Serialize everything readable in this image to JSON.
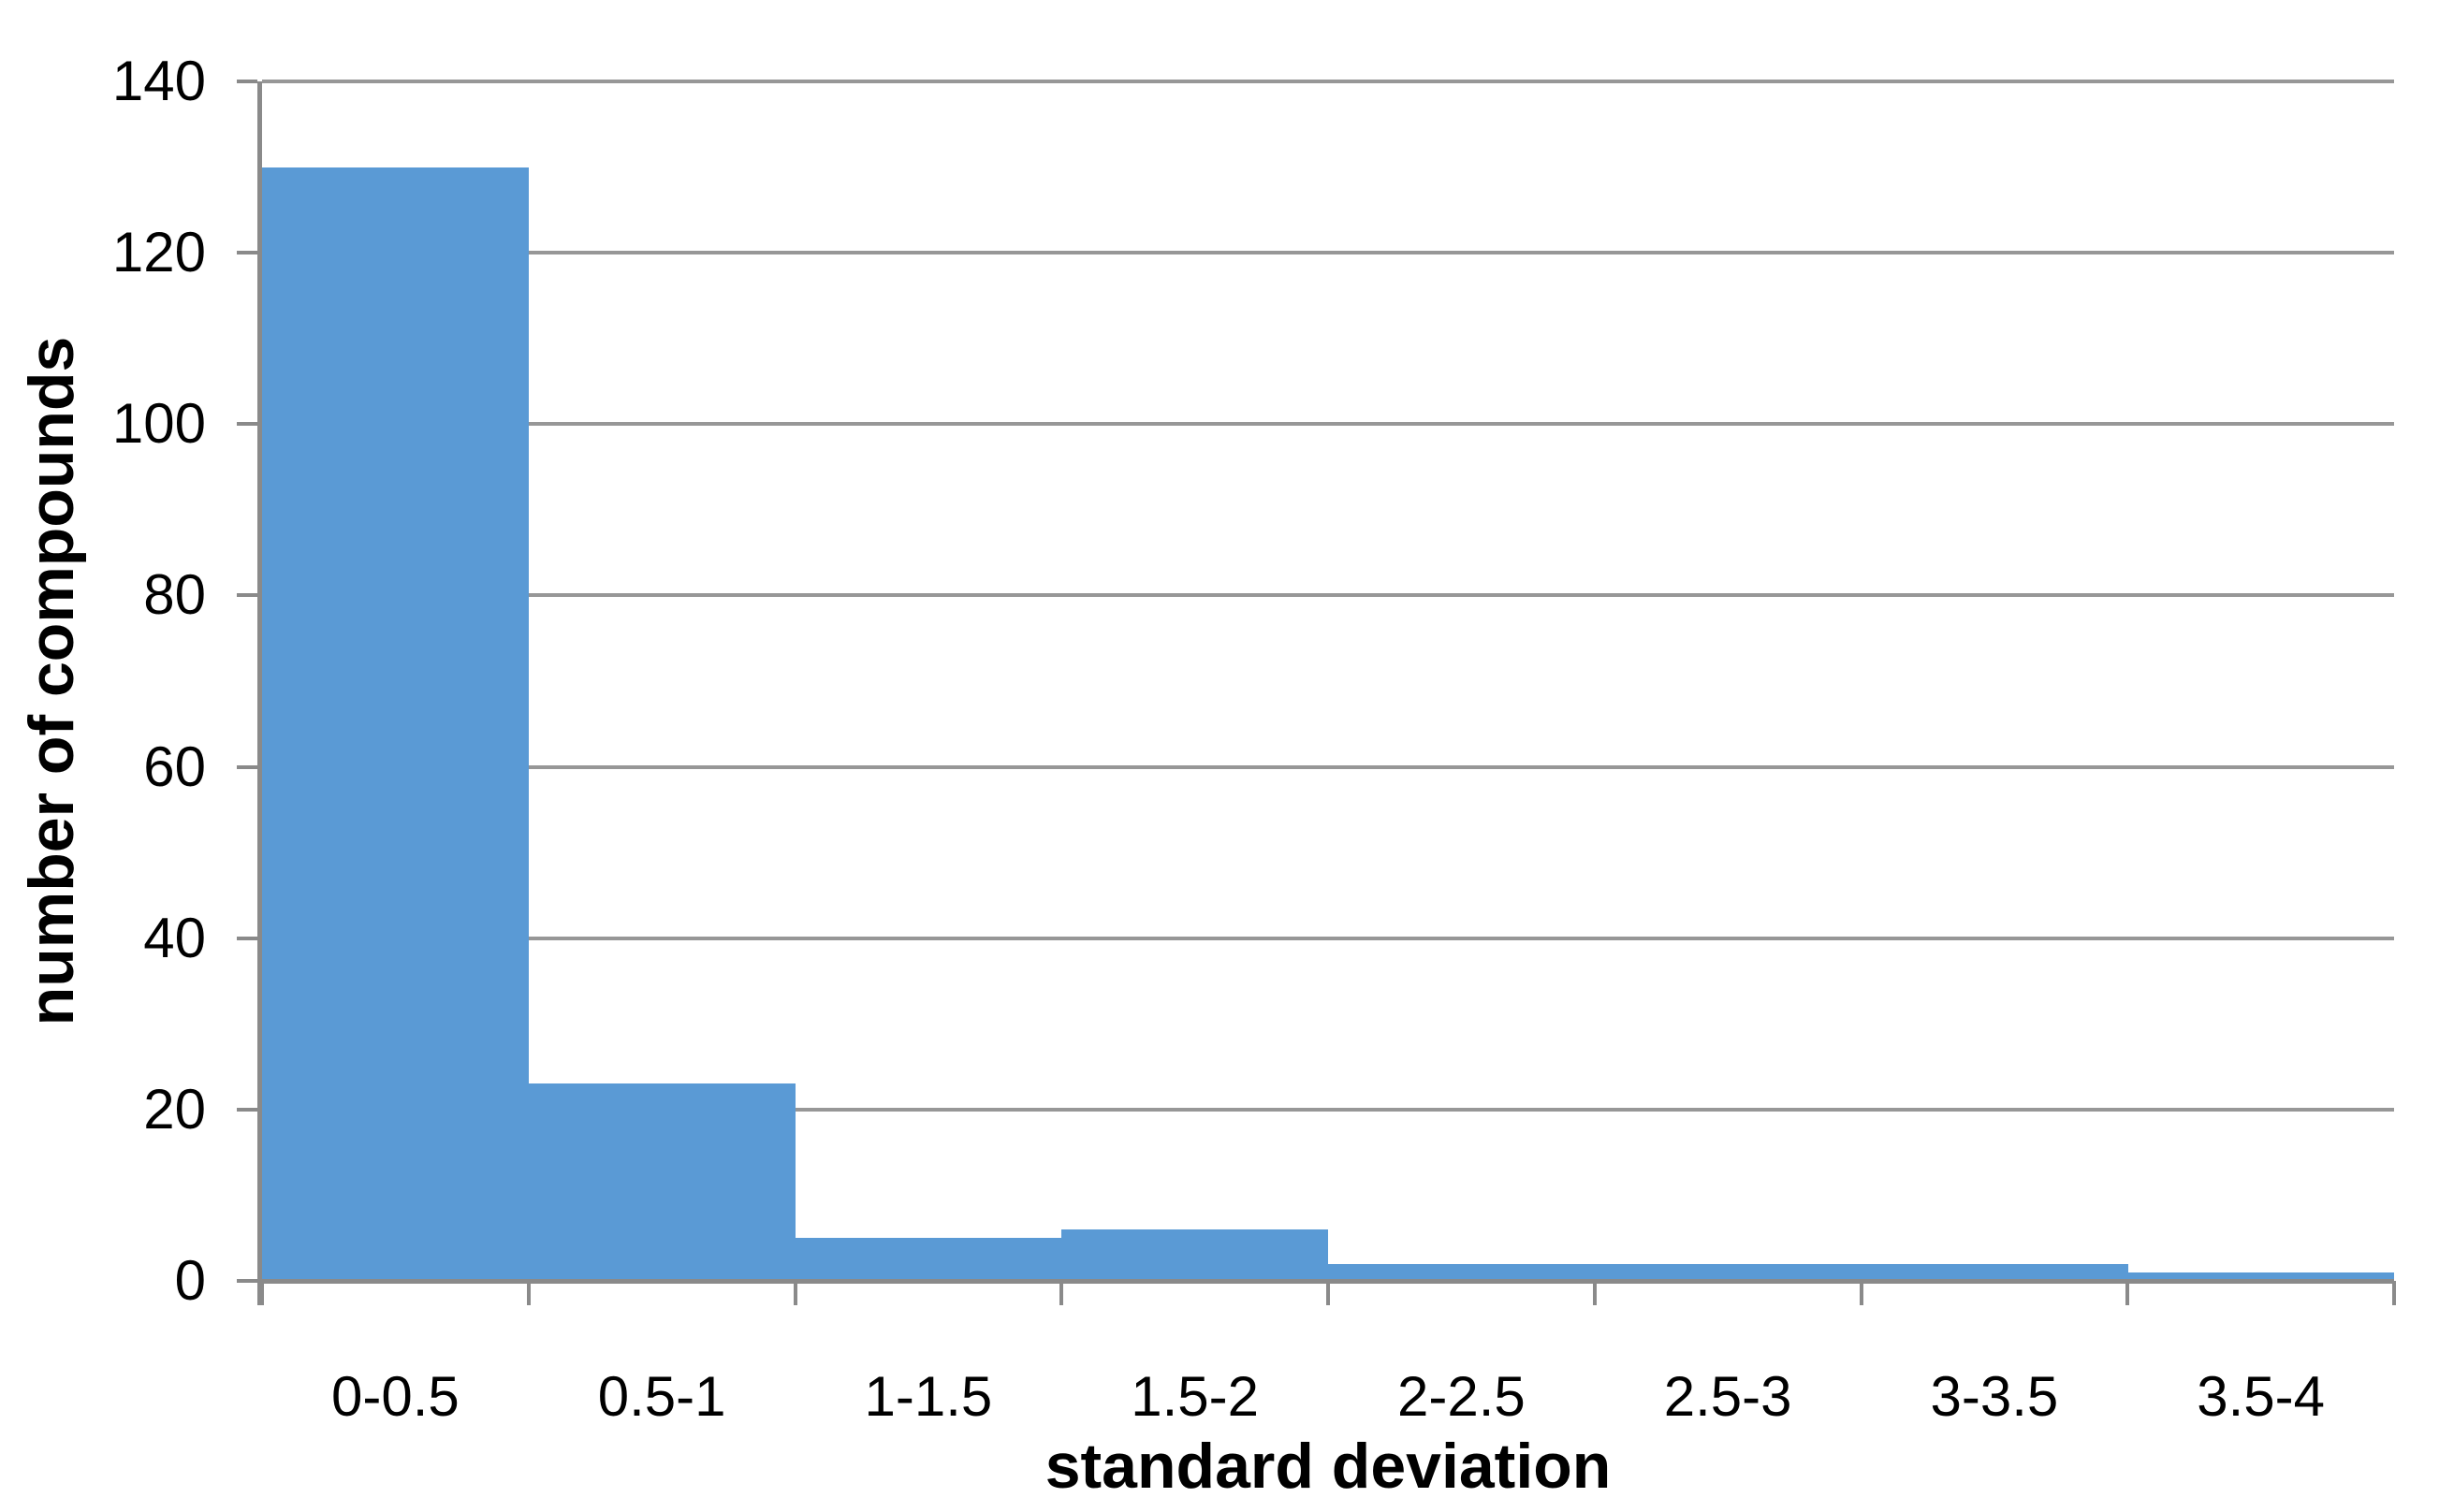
{
  "chart_data": {
    "type": "bar",
    "subtype": "histogram",
    "title": "",
    "xlabel": "standard deviation",
    "ylabel": "number of compounds",
    "categories": [
      "0-0.5",
      "0.5-1",
      "1-1.5",
      "1.5-2",
      "2-2.5",
      "2.5-3",
      "3-3.5",
      "3.5-4"
    ],
    "values": [
      130,
      23,
      5,
      6,
      2,
      2,
      2,
      1
    ],
    "ylim": [
      0,
      140
    ],
    "ytick_step": 20,
    "yticks": [
      0,
      20,
      40,
      60,
      80,
      100,
      120,
      140
    ],
    "grid": "horizontal",
    "legend_position": "none",
    "bar_gap_percent": 0,
    "colors": {
      "bar": "#5A9AD5",
      "gridline": "#979797",
      "axis": "#8A8A8A",
      "text": "#000000",
      "background": "#FFFFFF"
    }
  }
}
